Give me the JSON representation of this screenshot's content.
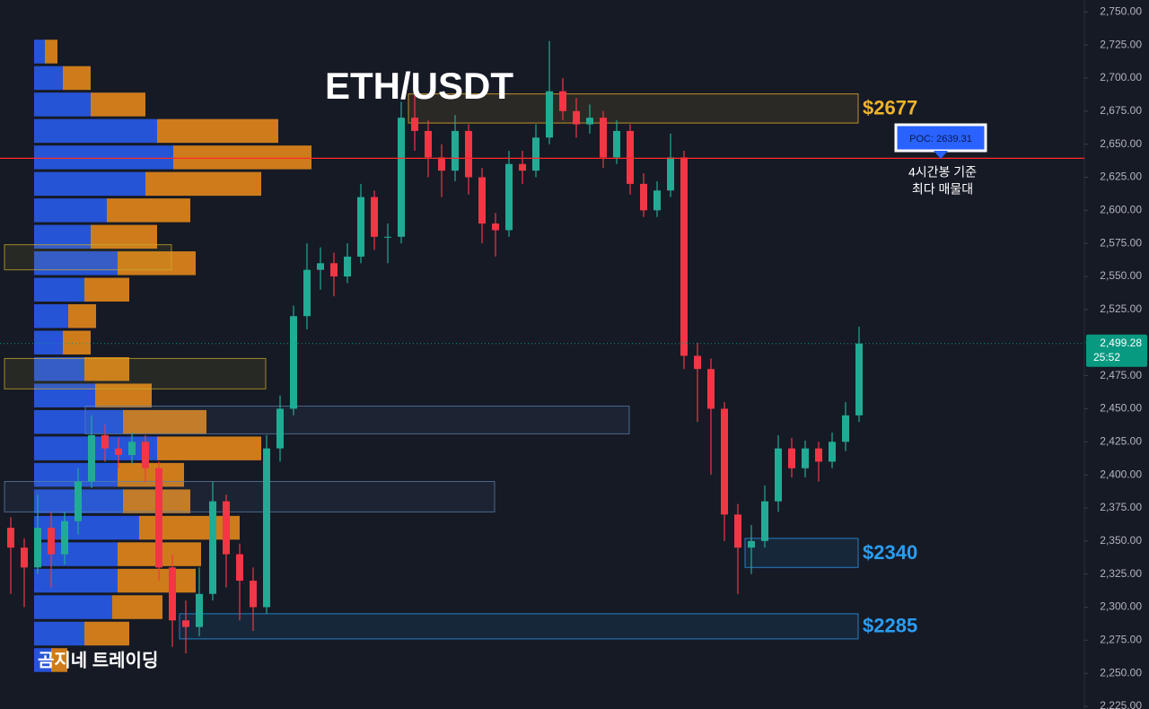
{
  "chart_data": {
    "type": "candlestick",
    "title": "ETH/USDT",
    "watermark": "곰지네 트레이딩",
    "up_color": "#22ab94",
    "down_color": "#f23645",
    "ylim": [
      2223,
      2759
    ],
    "yticks": [
      {
        "value": 2750,
        "label": "2,750.00"
      },
      {
        "value": 2725,
        "label": "2,725.00"
      },
      {
        "value": 2700,
        "label": "2,700.00"
      },
      {
        "value": 2675,
        "label": "2,675.00"
      },
      {
        "value": 2650,
        "label": "2,650.00"
      },
      {
        "value": 2625,
        "label": "2,625.00"
      },
      {
        "value": 2600,
        "label": "2,600.00"
      },
      {
        "value": 2575,
        "label": "2,575.00"
      },
      {
        "value": 2550,
        "label": "2,550.00"
      },
      {
        "value": 2525,
        "label": "2,525.00"
      },
      {
        "value": 2500,
        "label": "2,500.00"
      },
      {
        "value": 2475,
        "label": "2,475.00"
      },
      {
        "value": 2450,
        "label": "2,450.00"
      },
      {
        "value": 2425,
        "label": "2,425.00"
      },
      {
        "value": 2400,
        "label": "2,400.00"
      },
      {
        "value": 2375,
        "label": "2,375.00"
      },
      {
        "value": 2350,
        "label": "2,350.00"
      },
      {
        "value": 2325,
        "label": "2,325.00"
      },
      {
        "value": 2300,
        "label": "2,300.00"
      },
      {
        "value": 2275,
        "label": "2,275.00"
      },
      {
        "value": 2250,
        "label": "2,250.00"
      },
      {
        "value": 2225,
        "label": "2,225.00"
      }
    ],
    "grid": false,
    "open": [
      2360,
      2345,
      2330,
      2360,
      2340,
      2365,
      2395,
      2430,
      2420,
      2415,
      2425,
      2405,
      2330,
      2290,
      2285,
      2310,
      2380,
      2340,
      2320,
      2300,
      2420,
      2450,
      2520,
      2555,
      2560,
      2550,
      2565,
      2610,
      2580,
      2580,
      2670,
      2660,
      2640,
      2630,
      2660,
      2625,
      2590,
      2585,
      2635,
      2630,
      2655,
      2690,
      2675,
      2665,
      2670,
      2640,
      2660,
      2620,
      2600,
      2615,
      2640,
      2490,
      2480,
      2450,
      2370,
      2345,
      2350,
      2380,
      2420,
      2405,
      2420,
      2410,
      2425,
      2445
    ],
    "high": [
      2368,
      2352,
      2385,
      2372,
      2372,
      2405,
      2445,
      2438,
      2428,
      2432,
      2430,
      2410,
      2340,
      2305,
      2330,
      2395,
      2385,
      2348,
      2330,
      2430,
      2460,
      2528,
      2575,
      2572,
      2568,
      2575,
      2620,
      2615,
      2590,
      2682,
      2688,
      2668,
      2650,
      2672,
      2665,
      2632,
      2598,
      2645,
      2645,
      2665,
      2728,
      2700,
      2685,
      2680,
      2675,
      2668,
      2665,
      2628,
      2622,
      2658,
      2645,
      2500,
      2488,
      2455,
      2378,
      2362,
      2392,
      2430,
      2428,
      2426,
      2425,
      2432,
      2455,
      2512
    ],
    "low": [
      2310,
      2300,
      2325,
      2315,
      2332,
      2355,
      2390,
      2410,
      2405,
      2408,
      2395,
      2320,
      2270,
      2265,
      2278,
      2305,
      2315,
      2290,
      2282,
      2295,
      2410,
      2445,
      2510,
      2540,
      2535,
      2545,
      2560,
      2570,
      2560,
      2575,
      2645,
      2625,
      2610,
      2622,
      2612,
      2575,
      2565,
      2580,
      2620,
      2625,
      2650,
      2668,
      2655,
      2658,
      2632,
      2635,
      2612,
      2595,
      2595,
      2610,
      2480,
      2440,
      2400,
      2350,
      2310,
      2325,
      2345,
      2372,
      2398,
      2398,
      2395,
      2405,
      2418,
      2440
    ],
    "close": [
      2345,
      2330,
      2360,
      2340,
      2365,
      2395,
      2430,
      2420,
      2415,
      2425,
      2405,
      2330,
      2290,
      2285,
      2310,
      2380,
      2340,
      2320,
      2300,
      2420,
      2450,
      2520,
      2555,
      2560,
      2550,
      2565,
      2610,
      2580,
      2580,
      2670,
      2660,
      2640,
      2630,
      2660,
      2625,
      2590,
      2585,
      2635,
      2630,
      2655,
      2690,
      2675,
      2665,
      2670,
      2640,
      2660,
      2620,
      2600,
      2615,
      2640,
      2490,
      2480,
      2450,
      2370,
      2345,
      2350,
      2380,
      2420,
      2405,
      2420,
      2410,
      2425,
      2445,
      2499.28
    ],
    "volume_profile": {
      "bins": [
        2730,
        2710,
        2690,
        2670,
        2650,
        2630,
        2610,
        2590,
        2570,
        2550,
        2530,
        2510,
        2490,
        2470,
        2450,
        2430,
        2410,
        2390,
        2370,
        2350,
        2330,
        2310,
        2290,
        2270,
        2250
      ],
      "series": [
        {
          "color": "#2962ff",
          "values": [
            12,
            32,
            63,
            137,
            155,
            124,
            81,
            63,
            93,
            56,
            38,
            32,
            56,
            68,
            99,
            137,
            93,
            99,
            117,
            93,
            93,
            87,
            56,
            19
          ]
        },
        {
          "color": "#f7931a",
          "values": [
            14,
            31,
            61,
            135,
            154,
            129,
            93,
            74,
            87,
            50,
            31,
            31,
            50,
            63,
            93,
            116,
            74,
            75,
            112,
            93,
            87,
            56,
            50,
            18
          ]
        }
      ]
    },
    "zones": [
      {
        "label": "$2677",
        "low": 2666,
        "high": 2688,
        "start": 30,
        "end": 63,
        "color": "#f0b429"
      },
      {
        "label": "$2340",
        "low": 2330,
        "high": 2352,
        "start": 55,
        "end": 63,
        "color": "#2a9df4"
      },
      {
        "label": "$2285",
        "low": 2276,
        "high": 2295,
        "start": 13,
        "end": 63,
        "color": "#2a9df4"
      },
      {
        "low": 2431,
        "high": 2452,
        "start": 6,
        "end": 46,
        "color": "#5b7fae"
      },
      {
        "low": 2372,
        "high": 2395,
        "start": 0,
        "end": 36,
        "color": "#5b7fae"
      },
      {
        "low": 2555,
        "high": 2574,
        "start": 0,
        "end": 12,
        "color": "#c9ac2a"
      },
      {
        "low": 2465,
        "high": 2488,
        "start": 0,
        "end": 19,
        "color": "#c9ac2a"
      }
    ],
    "poc": {
      "value": 2639.31,
      "label": "POC: 2639.31",
      "color": "#ff2a2a",
      "note": [
        "4시간봉 기준",
        "최다 매물대"
      ]
    },
    "last_price": {
      "value": 2499.28,
      "label": "2,499.28",
      "countdown": "25:52",
      "color": "#089981"
    }
  }
}
